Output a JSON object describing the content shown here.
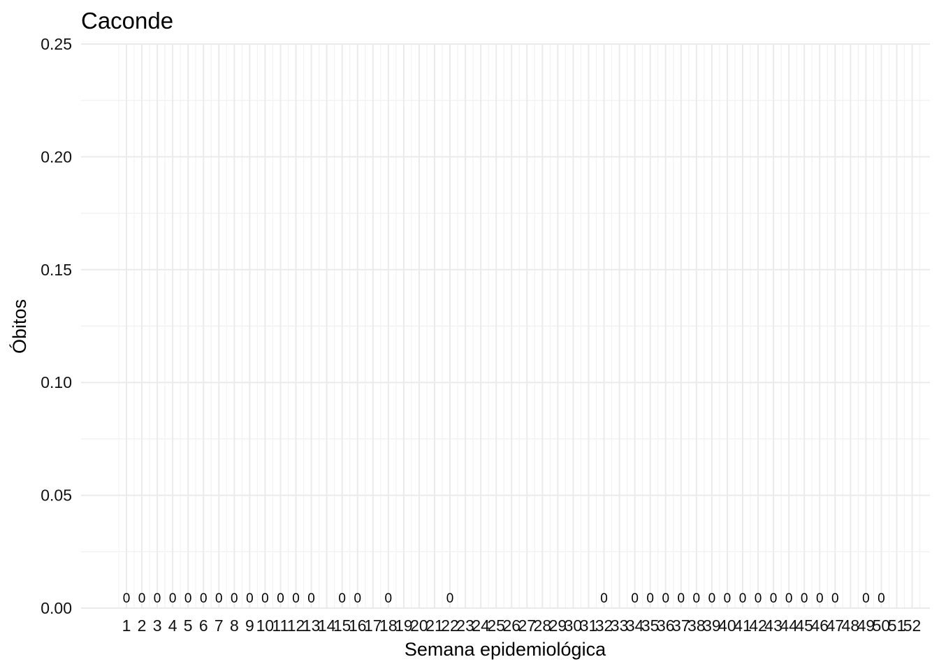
{
  "chart_data": {
    "type": "bar",
    "title": "Caconde",
    "xlabel": "Semana epidemiológica",
    "ylabel": "Óbitos",
    "ylim": [
      0,
      0.25
    ],
    "yticks": [
      "0.00",
      "0.05",
      "0.10",
      "0.15",
      "0.20",
      "0.25"
    ],
    "categories": [
      "1",
      "2",
      "3",
      "4",
      "5",
      "6",
      "7",
      "8",
      "9",
      "10",
      "11",
      "12",
      "13",
      "14",
      "15",
      "16",
      "17",
      "18",
      "19",
      "20",
      "21",
      "22",
      "23",
      "24",
      "25",
      "26",
      "27",
      "28",
      "29",
      "30",
      "31",
      "32",
      "33",
      "34",
      "35",
      "36",
      "37",
      "38",
      "39",
      "40",
      "41",
      "42",
      "43",
      "44",
      "45",
      "46",
      "47",
      "48",
      "49",
      "50",
      "51",
      "52"
    ],
    "values": [
      0,
      0,
      0,
      0,
      0,
      0,
      0,
      0,
      0,
      0,
      0,
      0,
      0,
      0,
      0,
      0,
      0,
      0,
      0,
      0,
      0,
      0,
      0,
      0,
      0,
      0,
      0,
      0,
      0,
      0,
      0,
      0,
      0,
      0,
      0,
      0,
      0,
      0,
      0,
      0,
      0,
      0,
      0,
      0,
      0,
      0,
      0,
      0,
      0,
      0,
      0,
      0
    ],
    "data_labels": [
      {
        "week": 1,
        "text": "0"
      },
      {
        "week": 2,
        "text": "0"
      },
      {
        "week": 3,
        "text": "0"
      },
      {
        "week": 4,
        "text": "0"
      },
      {
        "week": 5,
        "text": "0"
      },
      {
        "week": 6,
        "text": "0"
      },
      {
        "week": 7,
        "text": "0"
      },
      {
        "week": 8,
        "text": "0"
      },
      {
        "week": 9,
        "text": "0"
      },
      {
        "week": 10,
        "text": "0"
      },
      {
        "week": 11,
        "text": "0"
      },
      {
        "week": 12,
        "text": "0"
      },
      {
        "week": 13,
        "text": "0"
      },
      {
        "week": 15,
        "text": "0"
      },
      {
        "week": 16,
        "text": "0"
      },
      {
        "week": 18,
        "text": "0"
      },
      {
        "week": 22,
        "text": "0"
      },
      {
        "week": 32,
        "text": "0"
      },
      {
        "week": 34,
        "text": "0"
      },
      {
        "week": 35,
        "text": "0"
      },
      {
        "week": 36,
        "text": "0"
      },
      {
        "week": 37,
        "text": "0"
      },
      {
        "week": 38,
        "text": "0"
      },
      {
        "week": 39,
        "text": "0"
      },
      {
        "week": 40,
        "text": "0"
      },
      {
        "week": 41,
        "text": "0"
      },
      {
        "week": 42,
        "text": "0"
      },
      {
        "week": 43,
        "text": "0"
      },
      {
        "week": 44,
        "text": "0"
      },
      {
        "week": 45,
        "text": "0"
      },
      {
        "week": 46,
        "text": "0"
      },
      {
        "week": 47,
        "text": "0"
      },
      {
        "week": 49,
        "text": "0"
      },
      {
        "week": 50,
        "text": "0"
      }
    ],
    "grid": true,
    "legend": "none"
  }
}
